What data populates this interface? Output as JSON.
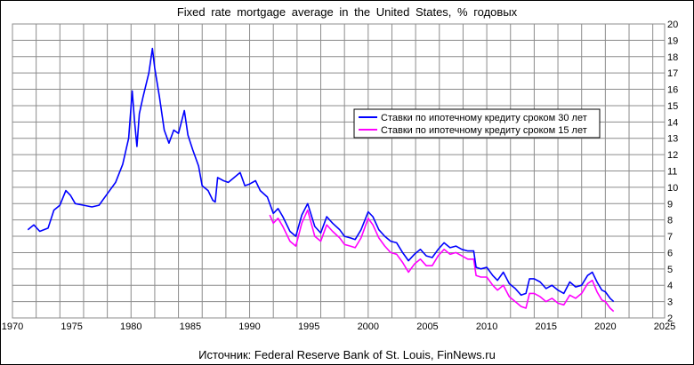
{
  "chart_data": {
    "type": "line",
    "title": "Fixed rate mortgage average in the United States, % годовых",
    "source": "Источник: Federal Reserve Bank of St. Louis, FinNews.ru",
    "xlim": [
      1970,
      2025
    ],
    "ylim": [
      2,
      20
    ],
    "x_ticks": [
      1970,
      1975,
      1980,
      1985,
      1990,
      1995,
      2000,
      2005,
      2010,
      2015,
      2020,
      2025
    ],
    "y_ticks": [
      2,
      3,
      4,
      5,
      6,
      7,
      8,
      9,
      10,
      11,
      12,
      13,
      14,
      15,
      16,
      17,
      18,
      19,
      20
    ],
    "grid": true,
    "legend_position": "right",
    "series": [
      {
        "name": "Ставки по ипотечному кредиту сроком 30 лет",
        "color": "#0000ff",
        "x": [
          1971.3,
          1971.8,
          1972.3,
          1973.0,
          1973.5,
          1974.0,
          1974.5,
          1974.9,
          1975.3,
          1976.0,
          1976.7,
          1977.3,
          1978.0,
          1978.7,
          1979.3,
          1979.8,
          1980.1,
          1980.3,
          1980.5,
          1980.7,
          1981.0,
          1981.5,
          1981.8,
          1982.0,
          1982.4,
          1982.8,
          1983.2,
          1983.6,
          1984.0,
          1984.5,
          1984.8,
          1985.2,
          1985.7,
          1986.0,
          1986.5,
          1986.9,
          1987.1,
          1987.3,
          1987.8,
          1988.2,
          1988.7,
          1989.2,
          1989.6,
          1990.0,
          1990.5,
          1990.9,
          1991.5,
          1992.0,
          1992.4,
          1992.8,
          1993.4,
          1993.9,
          1994.4,
          1994.9,
          1995.5,
          1996.0,
          1996.5,
          1997.0,
          1997.6,
          1998.0,
          1998.5,
          1998.9,
          1999.4,
          2000.0,
          2000.4,
          2000.9,
          2001.4,
          2001.9,
          2002.4,
          2002.9,
          2003.4,
          2003.9,
          2004.4,
          2004.9,
          2005.4,
          2005.9,
          2006.4,
          2006.9,
          2007.4,
          2007.9,
          2008.4,
          2008.9,
          2009.1,
          2009.5,
          2010.0,
          2010.5,
          2010.9,
          2011.4,
          2011.9,
          2012.4,
          2012.9,
          2013.3,
          2013.6,
          2014.0,
          2014.5,
          2015.0,
          2015.5,
          2016.0,
          2016.5,
          2017.0,
          2017.5,
          2018.0,
          2018.5,
          2018.9,
          2019.3,
          2019.7,
          2020.0,
          2020.4,
          2020.7
        ],
        "values": [
          7.4,
          7.7,
          7.3,
          7.5,
          8.6,
          8.9,
          9.8,
          9.5,
          9.0,
          8.9,
          8.8,
          8.9,
          9.6,
          10.3,
          11.4,
          13.0,
          15.9,
          14.0,
          12.5,
          14.5,
          15.5,
          17.0,
          18.5,
          17.3,
          15.5,
          13.5,
          12.7,
          13.5,
          13.3,
          14.7,
          13.2,
          12.3,
          11.3,
          10.1,
          9.8,
          9.2,
          9.1,
          10.6,
          10.4,
          10.3,
          10.6,
          10.9,
          10.1,
          10.2,
          10.4,
          9.8,
          9.4,
          8.4,
          8.7,
          8.2,
          7.3,
          7.0,
          8.3,
          9.0,
          7.6,
          7.2,
          8.2,
          7.8,
          7.4,
          7.0,
          6.9,
          6.8,
          7.4,
          8.5,
          8.2,
          7.4,
          7.0,
          6.7,
          6.6,
          6.0,
          5.5,
          5.9,
          6.2,
          5.8,
          5.7,
          6.2,
          6.6,
          6.3,
          6.4,
          6.2,
          6.1,
          6.1,
          5.1,
          5.0,
          5.1,
          4.6,
          4.3,
          4.8,
          4.1,
          3.8,
          3.4,
          3.5,
          4.4,
          4.4,
          4.2,
          3.8,
          4.0,
          3.7,
          3.5,
          4.2,
          3.9,
          4.0,
          4.6,
          4.8,
          4.2,
          3.7,
          3.6,
          3.2,
          3.0
        ]
      },
      {
        "name": "Ставки по ипотечному кредиту сроком 15 лет",
        "color": "#ff00ff",
        "x": [
          1991.7,
          1992.0,
          1992.4,
          1992.8,
          1993.4,
          1993.9,
          1994.4,
          1994.9,
          1995.5,
          1996.0,
          1996.5,
          1997.0,
          1997.6,
          1998.0,
          1998.5,
          1998.9,
          1999.4,
          2000.0,
          2000.4,
          2000.9,
          2001.4,
          2001.9,
          2002.4,
          2002.9,
          2003.4,
          2003.9,
          2004.4,
          2004.9,
          2005.4,
          2005.9,
          2006.4,
          2006.9,
          2007.4,
          2007.9,
          2008.4,
          2008.9,
          2009.1,
          2009.5,
          2010.0,
          2010.5,
          2010.9,
          2011.4,
          2011.9,
          2012.4,
          2012.9,
          2013.3,
          2013.6,
          2014.0,
          2014.5,
          2015.0,
          2015.5,
          2016.0,
          2016.5,
          2017.0,
          2017.5,
          2018.0,
          2018.5,
          2018.9,
          2019.3,
          2019.7,
          2020.0,
          2020.4,
          2020.7
        ],
        "values": [
          8.3,
          7.8,
          8.1,
          7.6,
          6.7,
          6.4,
          7.8,
          8.6,
          7.0,
          6.7,
          7.7,
          7.3,
          6.9,
          6.5,
          6.4,
          6.3,
          6.9,
          8.1,
          7.7,
          6.9,
          6.4,
          6.0,
          5.9,
          5.4,
          4.8,
          5.3,
          5.6,
          5.2,
          5.2,
          5.8,
          6.2,
          5.9,
          6.0,
          5.8,
          5.6,
          5.6,
          4.6,
          4.5,
          4.5,
          4.0,
          3.7,
          4.0,
          3.3,
          3.0,
          2.7,
          2.6,
          3.5,
          3.5,
          3.3,
          3.0,
          3.2,
          2.9,
          2.8,
          3.4,
          3.2,
          3.5,
          4.1,
          4.3,
          3.6,
          3.1,
          3.0,
          2.6,
          2.4
        ]
      }
    ]
  }
}
